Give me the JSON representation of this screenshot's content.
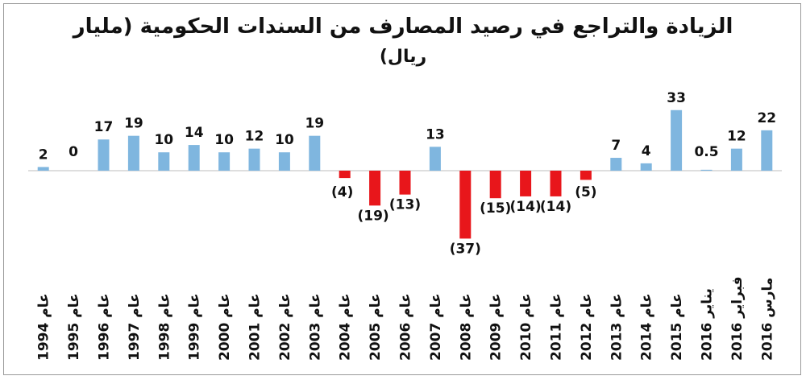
{
  "chart_data": {
    "type": "bar",
    "title": "الزيادة والتراجع في رصيد المصارف من السندات الحكومية (مليار ريال)",
    "title_line1": "الزيادة والتراجع في رصيد المصارف من السندات الحكومية (مليار",
    "title_line2": "ريال)",
    "categories": [
      "1994 عام",
      "1995 عام",
      "1996 عام",
      "1997 عام",
      "1998 عام",
      "1999 عام",
      "2000 عام",
      "2001 عام",
      "2002 عام",
      "2003 عام",
      "2004 عام",
      "2005 عام",
      "2006 عام",
      "2007 عام",
      "2008 عام",
      "2009 عام",
      "2010 عام",
      "2011 عام",
      "2012 عام",
      "2013 عام",
      "2014 عام",
      "2015 عام",
      "يناير 2016",
      "فبراير 2016",
      "مارس 2016"
    ],
    "values": [
      2,
      0,
      17,
      19,
      10,
      14,
      10,
      12,
      10,
      19,
      -4,
      -19,
      -13,
      13,
      -37,
      -15,
      -14,
      -14,
      -5,
      7,
      4,
      33,
      0.5,
      12,
      22
    ],
    "value_labels": [
      "2",
      "0",
      "17",
      "19",
      "10",
      "14",
      "10",
      "12",
      "10",
      "19",
      "(4)",
      "(19)",
      "(13)",
      "13",
      "(37)",
      "(15)",
      "(14)",
      "(14)",
      "(5)",
      "7",
      "4",
      "33",
      "0.5",
      "12",
      "22"
    ],
    "xlabel": "",
    "ylabel": "",
    "grid": false,
    "legend": "none",
    "colors": {
      "positive": "#7fb6df",
      "negative": "#e8161b",
      "axis": "#bdbdbd"
    }
  }
}
